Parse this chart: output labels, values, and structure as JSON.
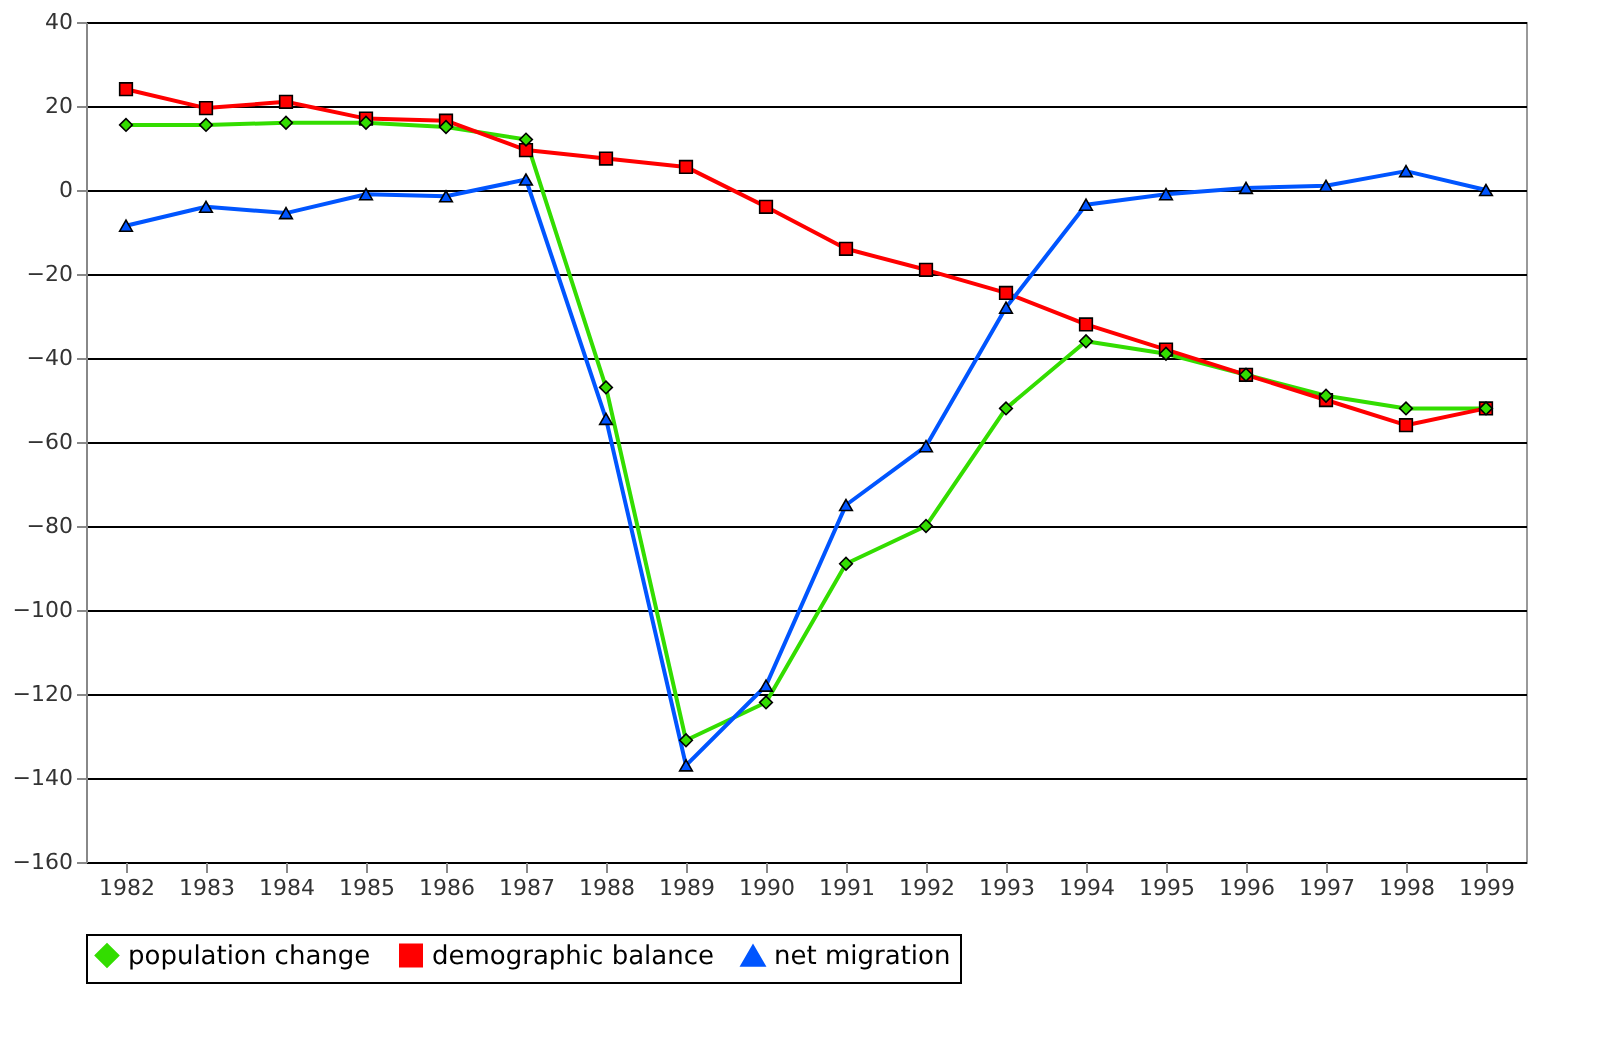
{
  "chart_data": {
    "type": "line",
    "categories": [
      "1982",
      "1983",
      "1984",
      "1985",
      "1986",
      "1987",
      "1988",
      "1989",
      "1990",
      "1991",
      "1992",
      "1993",
      "1994",
      "1995",
      "1996",
      "1997",
      "1998",
      "1999"
    ],
    "series": [
      {
        "name": "population change",
        "color": "#33dd00",
        "marker": "diamond",
        "values": [
          15.5,
          15.5,
          16,
          16,
          15,
          12,
          -47,
          -131,
          -122,
          -89,
          -80,
          -52,
          -36,
          -39,
          -44,
          -49,
          -52,
          -52
        ]
      },
      {
        "name": "demographic balance",
        "color": "#ff0000",
        "marker": "square",
        "values": [
          24,
          19.5,
          21,
          17,
          16.5,
          9.5,
          7.5,
          5.5,
          -4,
          -14,
          -19,
          -24.5,
          -32,
          -38,
          -44,
          -50,
          -56,
          -52
        ]
      },
      {
        "name": "net migration",
        "color": "#0055ff",
        "marker": "triangle",
        "values": [
          -8.5,
          -4,
          -5.5,
          -1,
          -1.5,
          2.5,
          -54.5,
          -137,
          -118,
          -75,
          -61,
          -28,
          -3.5,
          -1,
          0.5,
          1,
          4.5,
          0
        ]
      }
    ],
    "ylim": [
      -160,
      40
    ],
    "yticks": [
      -160,
      -140,
      -120,
      -100,
      -80,
      -60,
      -40,
      -20,
      0,
      20,
      40
    ],
    "grid": "y",
    "legend": "bottom"
  }
}
